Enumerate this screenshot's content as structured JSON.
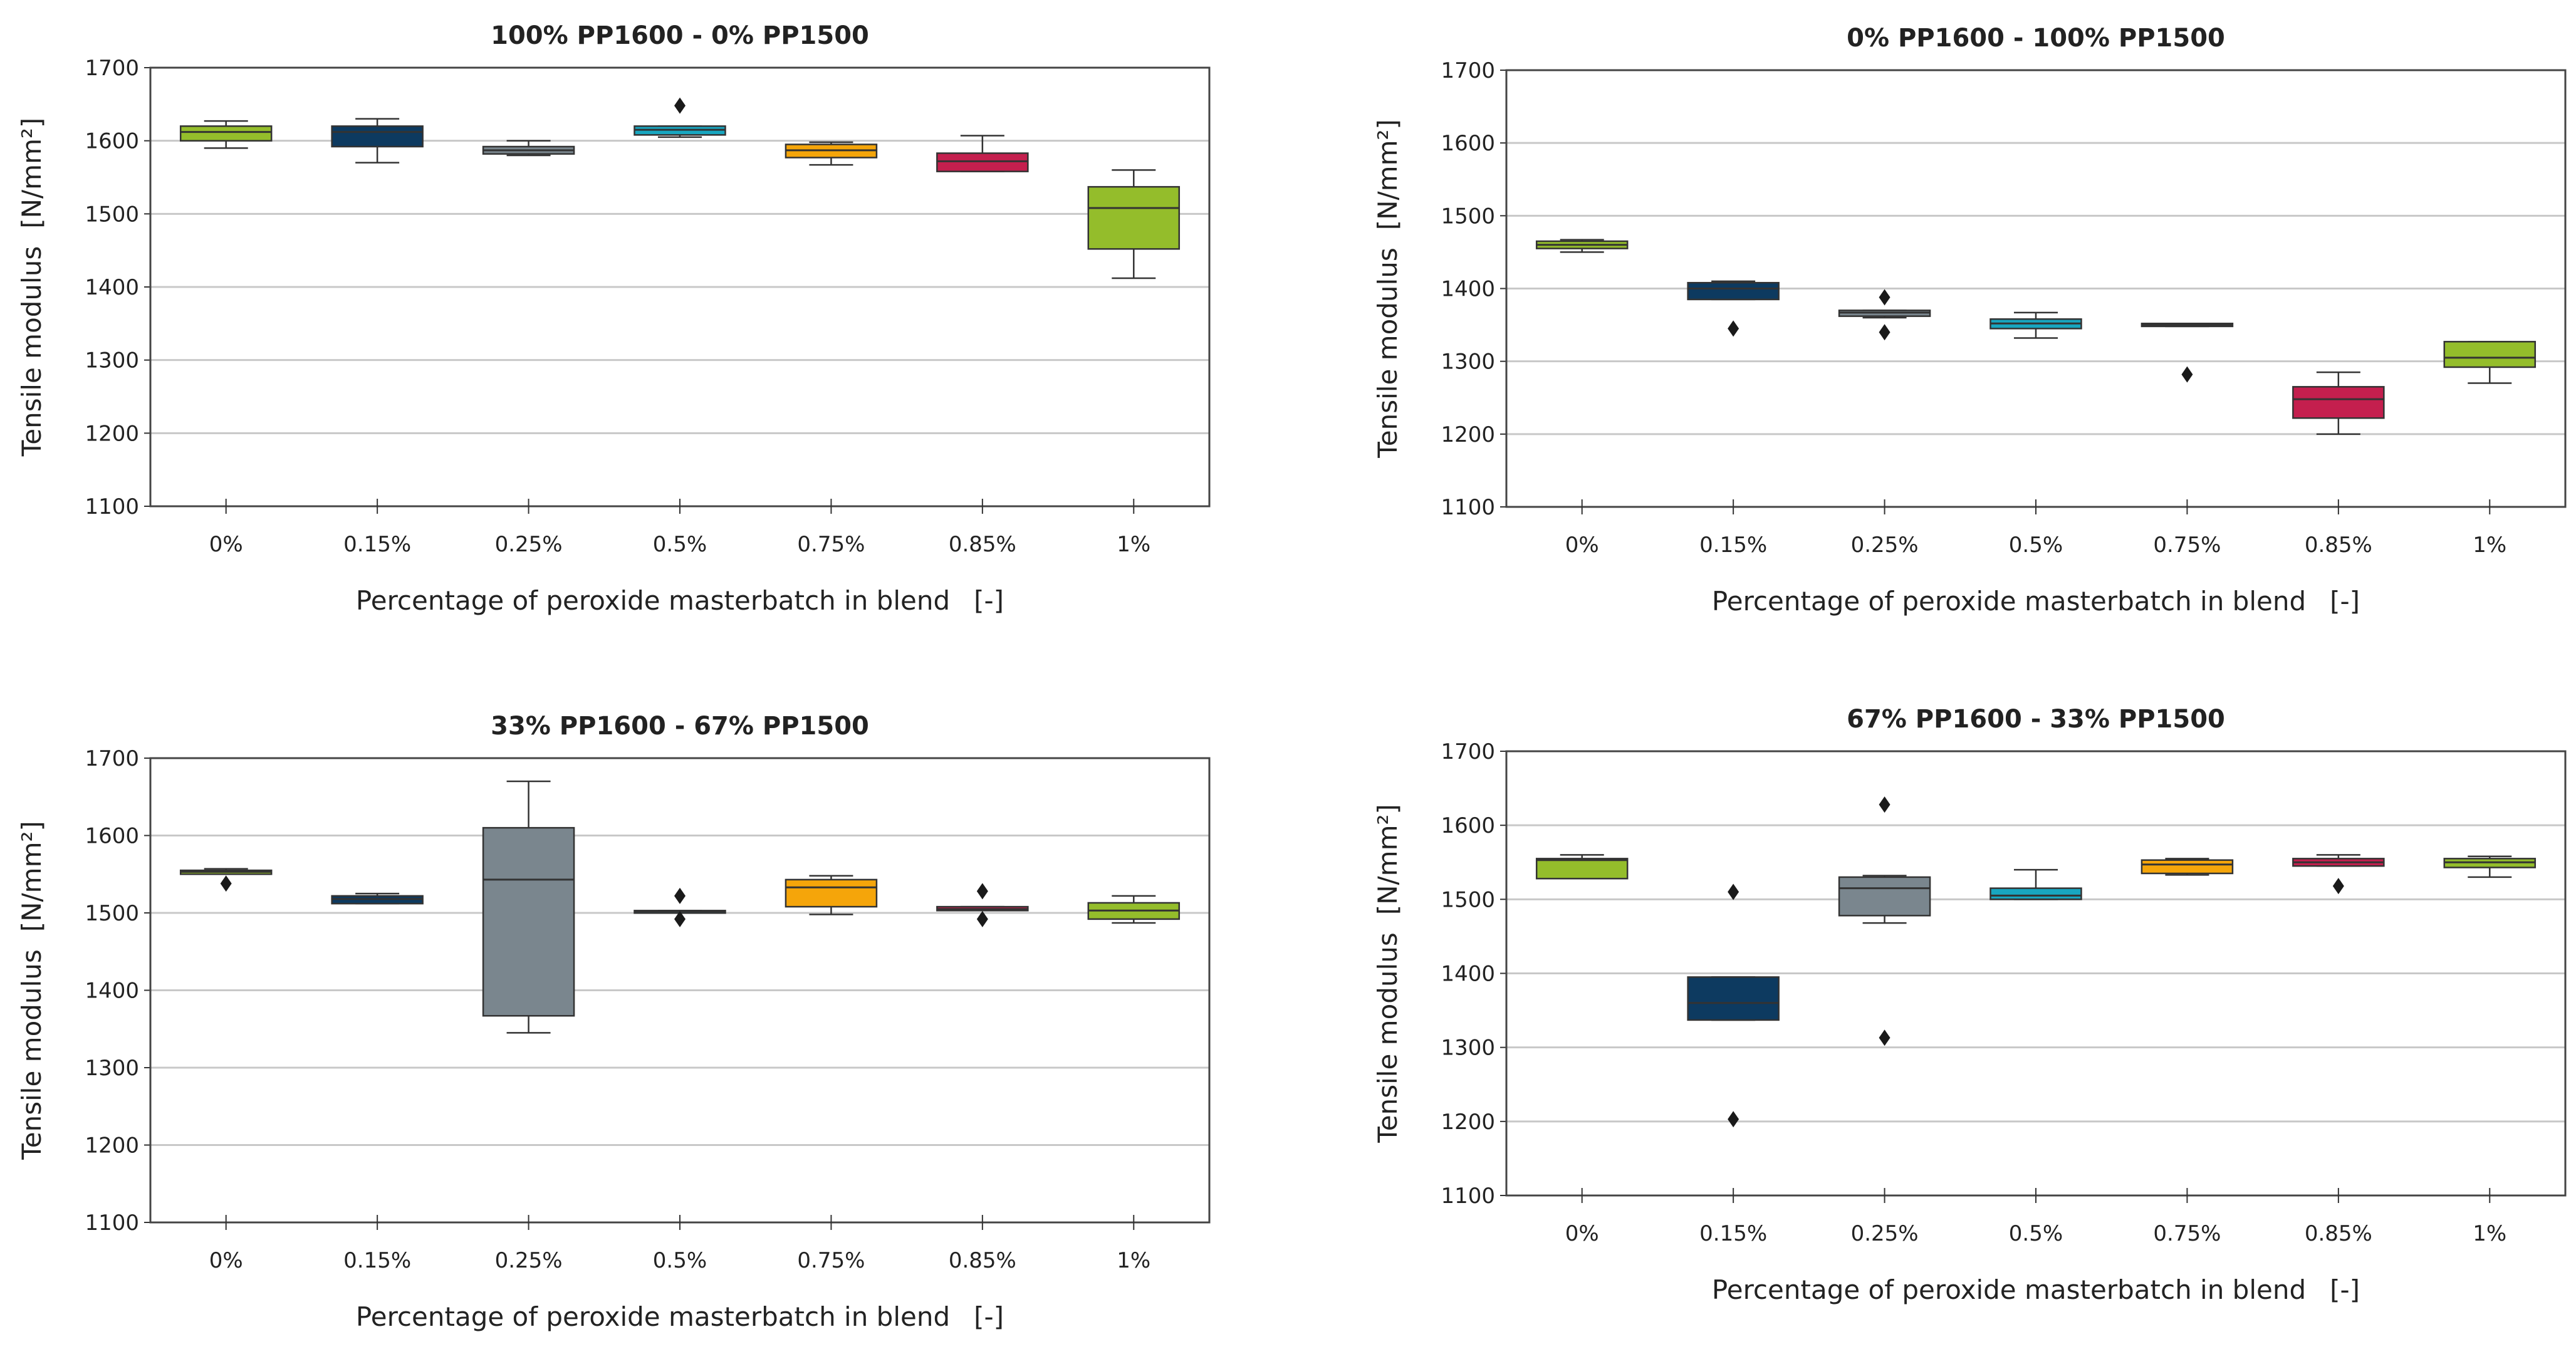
{
  "chart_data": [
    {
      "type": "box",
      "title": "100% PP1600 - 0% PP1500",
      "xlabel": "Percentage of peroxide masterbatch in blend",
      "xlabel_unit": "[-]",
      "ylabel": "Tensile modulus",
      "ylabel_unit": "[N/mm²]",
      "ylim": [
        1100,
        1700
      ],
      "yticks": [
        1100,
        1200,
        1300,
        1400,
        1500,
        1600,
        1700
      ],
      "categories": [
        "0%",
        "0.15%",
        "0.25%",
        "0.5%",
        "0.75%",
        "0.85%",
        "1%"
      ],
      "grid": true,
      "boxes": [
        {
          "min": 1590,
          "q1": 1600,
          "median": 1612,
          "q3": 1620,
          "max": 1627,
          "outliers": []
        },
        {
          "min": 1570,
          "q1": 1592,
          "median": 1612,
          "q3": 1620,
          "max": 1630,
          "outliers": []
        },
        {
          "min": 1580,
          "q1": 1582,
          "median": 1587,
          "q3": 1592,
          "max": 1600,
          "outliers": []
        },
        {
          "min": 1605,
          "q1": 1608,
          "median": 1615,
          "q3": 1620,
          "max": 1620,
          "outliers": [
            1648
          ]
        },
        {
          "min": 1567,
          "q1": 1577,
          "median": 1587,
          "q3": 1595,
          "max": 1598,
          "outliers": []
        },
        {
          "min": 1558,
          "q1": 1558,
          "median": 1572,
          "q3": 1583,
          "max": 1607,
          "outliers": []
        },
        {
          "min": 1412,
          "q1": 1452,
          "median": 1508,
          "q3": 1537,
          "max": 1560,
          "outliers": []
        }
      ]
    },
    {
      "type": "box",
      "title": "0% PP1600 - 100% PP1500",
      "xlabel": "Percentage of peroxide masterbatch in blend",
      "xlabel_unit": "[-]",
      "ylabel": "Tensile modulus",
      "ylabel_unit": "[N/mm²]",
      "ylim": [
        1100,
        1700
      ],
      "yticks": [
        1100,
        1200,
        1300,
        1400,
        1500,
        1600,
        1700
      ],
      "categories": [
        "0%",
        "0.15%",
        "0.25%",
        "0.5%",
        "0.75%",
        "0.85%",
        "1%"
      ],
      "grid": true,
      "boxes": [
        {
          "min": 1450,
          "q1": 1455,
          "median": 1460,
          "q3": 1465,
          "max": 1467,
          "outliers": []
        },
        {
          "min": 1385,
          "q1": 1385,
          "median": 1400,
          "q3": 1408,
          "max": 1410,
          "outliers": [
            1345
          ]
        },
        {
          "min": 1360,
          "q1": 1362,
          "median": 1367,
          "q3": 1370,
          "max": 1370,
          "outliers": [
            1388,
            1340
          ]
        },
        {
          "min": 1332,
          "q1": 1345,
          "median": 1352,
          "q3": 1358,
          "max": 1367,
          "outliers": []
        },
        {
          "min": 1348,
          "q1": 1348,
          "median": 1350,
          "q3": 1352,
          "max": 1352,
          "outliers": [
            1282
          ]
        },
        {
          "min": 1200,
          "q1": 1222,
          "median": 1248,
          "q3": 1265,
          "max": 1285,
          "outliers": []
        },
        {
          "min": 1270,
          "q1": 1292,
          "median": 1305,
          "q3": 1327,
          "max": 1327,
          "outliers": []
        }
      ]
    },
    {
      "type": "box",
      "title": "33% PP1600 - 67% PP1500",
      "xlabel": "Percentage of peroxide masterbatch in blend",
      "xlabel_unit": "[-]",
      "ylabel": "Tensile modulus",
      "ylabel_unit": "[N/mm²]",
      "ylim": [
        1100,
        1700
      ],
      "yticks": [
        1100,
        1200,
        1300,
        1400,
        1500,
        1600,
        1700
      ],
      "categories": [
        "0%",
        "0.15%",
        "0.25%",
        "0.5%",
        "0.75%",
        "0.85%",
        "1%"
      ],
      "grid": true,
      "boxes": [
        {
          "min": 1550,
          "q1": 1550,
          "median": 1553,
          "q3": 1555,
          "max": 1557,
          "outliers": [
            1538
          ]
        },
        {
          "min": 1512,
          "q1": 1512,
          "median": 1518,
          "q3": 1522,
          "max": 1525,
          "outliers": []
        },
        {
          "min": 1345,
          "q1": 1367,
          "median": 1543,
          "q3": 1610,
          "max": 1670,
          "outliers": []
        },
        {
          "min": 1500,
          "q1": 1500,
          "median": 1502,
          "q3": 1503,
          "max": 1503,
          "outliers": [
            1522,
            1492
          ]
        },
        {
          "min": 1498,
          "q1": 1508,
          "median": 1533,
          "q3": 1543,
          "max": 1548,
          "outliers": []
        },
        {
          "min": 1503,
          "q1": 1503,
          "median": 1505,
          "q3": 1508,
          "max": 1508,
          "outliers": [
            1528,
            1492
          ]
        },
        {
          "min": 1487,
          "q1": 1492,
          "median": 1503,
          "q3": 1513,
          "max": 1522,
          "outliers": []
        }
      ]
    },
    {
      "type": "box",
      "title": "67% PP1600 - 33% PP1500",
      "xlabel": "Percentage of peroxide masterbatch in blend",
      "xlabel_unit": "[-]",
      "ylabel": "Tensile modulus",
      "ylabel_unit": "[N/mm²]",
      "ylim": [
        1100,
        1700
      ],
      "yticks": [
        1100,
        1200,
        1300,
        1400,
        1500,
        1600,
        1700
      ],
      "categories": [
        "0%",
        "0.15%",
        "0.25%",
        "0.5%",
        "0.75%",
        "0.85%",
        "1%"
      ],
      "grid": true,
      "boxes": [
        {
          "min": 1528,
          "q1": 1528,
          "median": 1553,
          "q3": 1555,
          "max": 1560,
          "outliers": []
        },
        {
          "min": 1337,
          "q1": 1337,
          "median": 1360,
          "q3": 1395,
          "max": 1395,
          "outliers": [
            1510,
            1203
          ]
        },
        {
          "min": 1468,
          "q1": 1478,
          "median": 1515,
          "q3": 1530,
          "max": 1532,
          "outliers": [
            1628,
            1313
          ]
        },
        {
          "min": 1500,
          "q1": 1500,
          "median": 1505,
          "q3": 1515,
          "max": 1540,
          "outliers": []
        },
        {
          "min": 1533,
          "q1": 1535,
          "median": 1547,
          "q3": 1553,
          "max": 1555,
          "outliers": []
        },
        {
          "min": 1545,
          "q1": 1545,
          "median": 1550,
          "q3": 1555,
          "max": 1560,
          "outliers": [
            1518
          ]
        },
        {
          "min": 1530,
          "q1": 1543,
          "median": 1550,
          "q3": 1555,
          "max": 1558,
          "outliers": []
        }
      ]
    }
  ],
  "box_colors": [
    "#94BD2B",
    "#0D3A60",
    "#7A868E",
    "#18A6C0",
    "#F5A50A",
    "#C41F4E",
    "#94BD2B"
  ],
  "gridline_color": "#c8c8c8"
}
